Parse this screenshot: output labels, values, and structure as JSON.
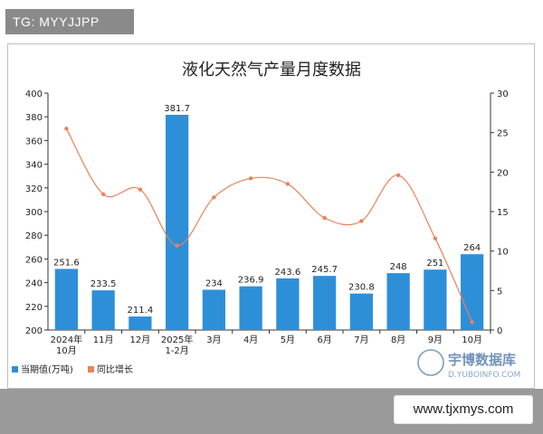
{
  "tag_text": "TG: MYYJJPP",
  "watermark_text": "www.tjxmys.com",
  "brand": {
    "name_cn": "宇博数据库",
    "url": "D.YUBOINFO.COM"
  },
  "colors": {
    "bar": "#2e8fd9",
    "line": "#e8825a",
    "axis": "#333333",
    "tag_bg": "#8a8a8a"
  },
  "chart_data": {
    "type": "bar",
    "title": "液化天然气产量月度数据",
    "categories": [
      "2024年\n10月",
      "11月",
      "12月",
      "2025年\n1-2月",
      "3月",
      "4月",
      "5月",
      "6月",
      "7月",
      "8月",
      "9月",
      "10月"
    ],
    "series": [
      {
        "name": "当期值(万吨)",
        "type": "bar",
        "axis": "left",
        "values": [
          251.6,
          233.5,
          211.4,
          381.7,
          234,
          236.9,
          243.6,
          245.7,
          230.8,
          248,
          251,
          264
        ],
        "labels": [
          "251.6",
          "233.5",
          "211.4",
          "381.7",
          "234",
          "236.9",
          "243.6",
          "245.7",
          "230.8",
          "248",
          "251",
          "264"
        ]
      },
      {
        "name": "同比增长",
        "type": "line",
        "axis": "right",
        "values": [
          25.5,
          17.2,
          17.8,
          10.7,
          16.8,
          19.2,
          18.5,
          14.2,
          13.8,
          19.6,
          11.6,
          1.0
        ]
      }
    ],
    "ylim_left": [
      200,
      400
    ],
    "yticks_left": [
      200,
      220,
      240,
      260,
      280,
      300,
      320,
      340,
      360,
      380,
      400
    ],
    "ylim_right": [
      0,
      30
    ],
    "yticks_right": [
      0,
      5,
      10,
      15,
      20,
      25,
      30
    ],
    "grid": false,
    "legend_position": "bottom-left"
  }
}
